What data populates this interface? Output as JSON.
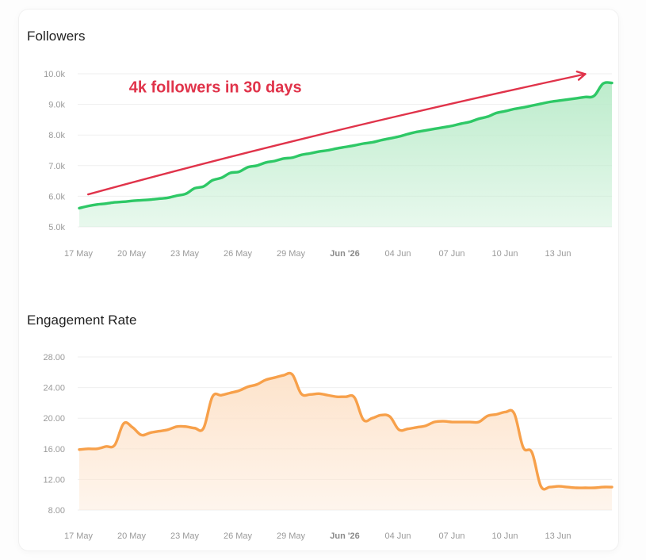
{
  "chart_data": [
    {
      "type": "area",
      "title": "Followers",
      "x_ticks": [
        "17 May",
        "20 May",
        "23 May",
        "26 May",
        "29 May",
        "Jun '26",
        "04 Jun",
        "07 Jun",
        "10 Jun",
        "13 Jun"
      ],
      "bold_tick": "Jun '26",
      "y_ticks": [
        "5.0k",
        "6.0k",
        "7.0k",
        "8.0k",
        "9.0k",
        "10.0k"
      ],
      "ylim": [
        5000,
        10000
      ],
      "x_range_days": [
        0,
        30
      ],
      "grid": true,
      "color": "#2ec866",
      "fill_color": "#bdeccc",
      "series": [
        {
          "x": [
            0,
            0.5,
            1,
            1.5,
            2,
            2.5,
            3,
            3.5,
            4,
            4.5,
            5,
            5.5,
            6,
            6.5,
            7,
            7.5,
            8,
            8.5,
            9,
            9.5,
            10,
            10.5,
            11,
            11.5,
            12,
            12.5,
            13,
            13.5,
            14,
            14.5,
            15,
            15.5,
            16,
            16.5,
            17,
            17.5,
            18,
            18.5,
            19,
            19.5,
            20,
            20.5,
            21,
            21.5,
            22,
            22.5,
            23,
            23.5,
            24,
            24.5,
            25,
            25.5,
            26,
            26.5,
            27,
            27.5,
            28,
            28.5,
            29,
            29.5,
            30
          ],
          "values": [
            5610,
            5680,
            5730,
            5760,
            5800,
            5820,
            5850,
            5870,
            5890,
            5920,
            5950,
            6020,
            6080,
            6260,
            6320,
            6520,
            6600,
            6760,
            6800,
            6950,
            7000,
            7100,
            7150,
            7230,
            7260,
            7350,
            7400,
            7460,
            7500,
            7560,
            7610,
            7660,
            7720,
            7760,
            7830,
            7890,
            7950,
            8030,
            8100,
            8150,
            8200,
            8250,
            8300,
            8370,
            8430,
            8530,
            8600,
            8720,
            8780,
            8850,
            8900,
            8960,
            9020,
            9080,
            9120,
            9160,
            9200,
            9240,
            9280,
            9680,
            9700
          ]
        }
      ],
      "annotation": {
        "text": "4k followers in 30 days",
        "color": "#e0334a",
        "arrow_from": {
          "x": 0.5,
          "y": 6060
        },
        "arrow_to": {
          "x": 28.5,
          "y": 9990
        },
        "text_anchor": {
          "x": 2.8,
          "y": 9570
        }
      }
    },
    {
      "type": "area",
      "title": "Engagement Rate",
      "x_ticks": [
        "17 May",
        "20 May",
        "23 May",
        "26 May",
        "29 May",
        "Jun '26",
        "04 Jun",
        "07 Jun",
        "10 Jun",
        "13 Jun"
      ],
      "bold_tick": "Jun '26",
      "y_ticks": [
        "8.00",
        "12.00",
        "16.00",
        "20.00",
        "24.00",
        "28.00"
      ],
      "ylim": [
        8,
        28
      ],
      "x_range_days": [
        0,
        30
      ],
      "grid": true,
      "color": "#f7a04a",
      "fill_color": "#fde3cb",
      "series": [
        {
          "x": [
            0,
            0.5,
            1,
            1.5,
            2,
            2.5,
            3,
            3.5,
            4,
            4.5,
            5,
            5.5,
            6,
            6.5,
            7,
            7.5,
            8,
            8.5,
            9,
            9.5,
            10,
            10.5,
            11,
            11.5,
            12,
            12.5,
            13,
            13.5,
            14,
            14.5,
            15,
            15.5,
            16,
            16.5,
            17,
            17.5,
            18,
            18.5,
            19,
            19.5,
            20,
            20.5,
            21,
            21.5,
            22,
            22.5,
            23,
            23.5,
            24,
            24.5,
            25,
            25.5,
            26,
            26.5,
            27,
            27.5,
            28,
            28.5,
            29,
            29.5,
            30
          ],
          "values": [
            15.9,
            16.0,
            16.0,
            16.3,
            16.5,
            19.3,
            18.8,
            17.8,
            18.1,
            18.3,
            18.5,
            18.9,
            18.9,
            18.7,
            18.7,
            22.8,
            23.0,
            23.3,
            23.6,
            24.1,
            24.4,
            25.0,
            25.3,
            25.6,
            25.7,
            23.2,
            23.1,
            23.2,
            23.0,
            22.8,
            22.8,
            22.7,
            19.8,
            20.0,
            20.4,
            20.2,
            18.5,
            18.6,
            18.8,
            19.0,
            19.5,
            19.6,
            19.5,
            19.5,
            19.5,
            19.5,
            20.3,
            20.5,
            20.8,
            20.6,
            16.2,
            15.5,
            11.1,
            11.0,
            11.1,
            11.0,
            10.9,
            10.9,
            10.9,
            11.0,
            11.0
          ]
        }
      ]
    }
  ]
}
